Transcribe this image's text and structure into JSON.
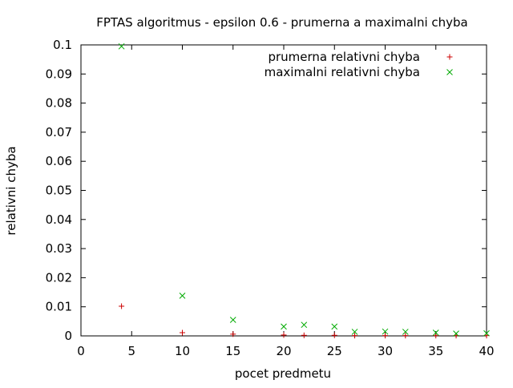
{
  "chart_data": {
    "type": "scatter",
    "title": "FPTAS algoritmus - epsilon 0.6 - prumerna a maximalni chyba",
    "xlabel": "pocet predmetu",
    "ylabel": "relativni chyba",
    "xlim": [
      0,
      40
    ],
    "ylim": [
      0,
      0.1
    ],
    "x_ticks": [
      "0",
      "5",
      "10",
      "15",
      "20",
      "25",
      "30",
      "35",
      "40"
    ],
    "y_ticks": [
      "0",
      "0.01",
      "0.02",
      "0.03",
      "0.04",
      "0.05",
      "0.06",
      "0.07",
      "0.08",
      "0.09",
      "0.1"
    ],
    "grid": false,
    "legend_position": "top-right",
    "series": [
      {
        "name": "prumerna relativni chyba",
        "marker": "plus",
        "color": "#cc0000",
        "x": [
          4,
          10,
          15,
          20,
          22,
          25,
          27,
          30,
          32,
          35,
          37,
          40
        ],
        "y": [
          0.0102,
          0.0011,
          0.0006,
          0.0003,
          0.0002,
          0.0002,
          0.0001,
          0.0001,
          0.0001,
          0.0001,
          0.0001,
          0.0001
        ]
      },
      {
        "name": "maximalni relativni chyba",
        "marker": "cross",
        "color": "#00aa00",
        "x": [
          4,
          10,
          15,
          20,
          22,
          25,
          27,
          30,
          32,
          35,
          37,
          40
        ],
        "y": [
          0.0995,
          0.0138,
          0.0055,
          0.0032,
          0.0038,
          0.0032,
          0.0014,
          0.0015,
          0.0014,
          0.0011,
          0.0008,
          0.0009
        ]
      }
    ]
  }
}
